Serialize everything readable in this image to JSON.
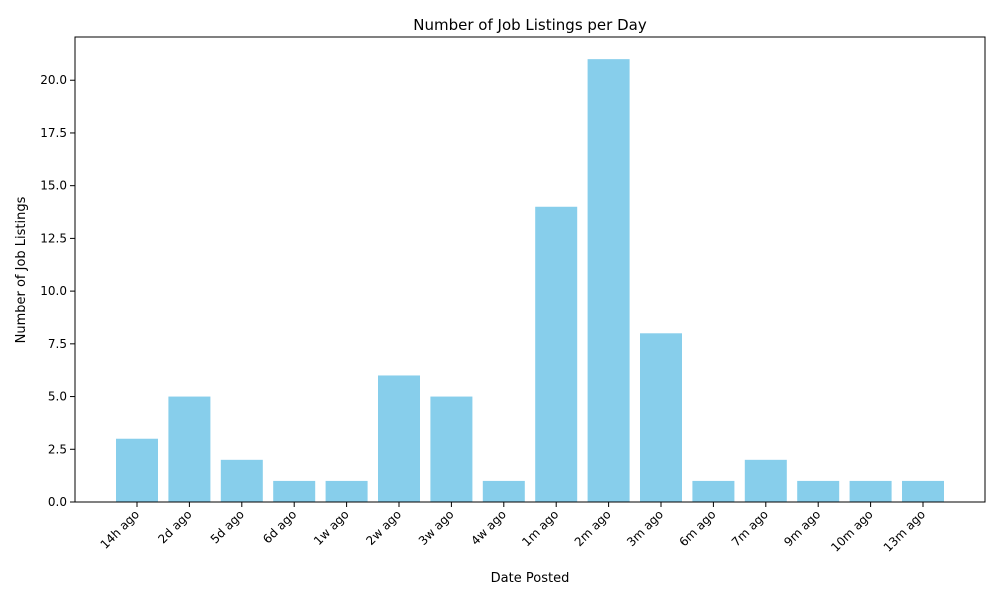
{
  "chart_data": {
    "type": "bar",
    "title": "Number of Job Listings per Day",
    "xlabel": "Date Posted",
    "ylabel": "Number of Job Listings",
    "categories": [
      "14h ago",
      "2d ago",
      "5d ago",
      "6d ago",
      "1w ago",
      "2w ago",
      "3w ago",
      "4w ago",
      "1m ago",
      "2m ago",
      "3m ago",
      "6m ago",
      "7m ago",
      "9m ago",
      "10m ago",
      "13m ago"
    ],
    "values": [
      3,
      5,
      2,
      1,
      1,
      6,
      5,
      1,
      14,
      21,
      8,
      1,
      2,
      1,
      1,
      1
    ],
    "ylim": [
      0,
      22.05
    ],
    "yticks": [
      "0.0",
      "2.5",
      "5.0",
      "7.5",
      "10.0",
      "12.5",
      "15.0",
      "17.5",
      "20.0"
    ],
    "bar_color": "#87ceeb",
    "grid": false,
    "legend": "none"
  }
}
